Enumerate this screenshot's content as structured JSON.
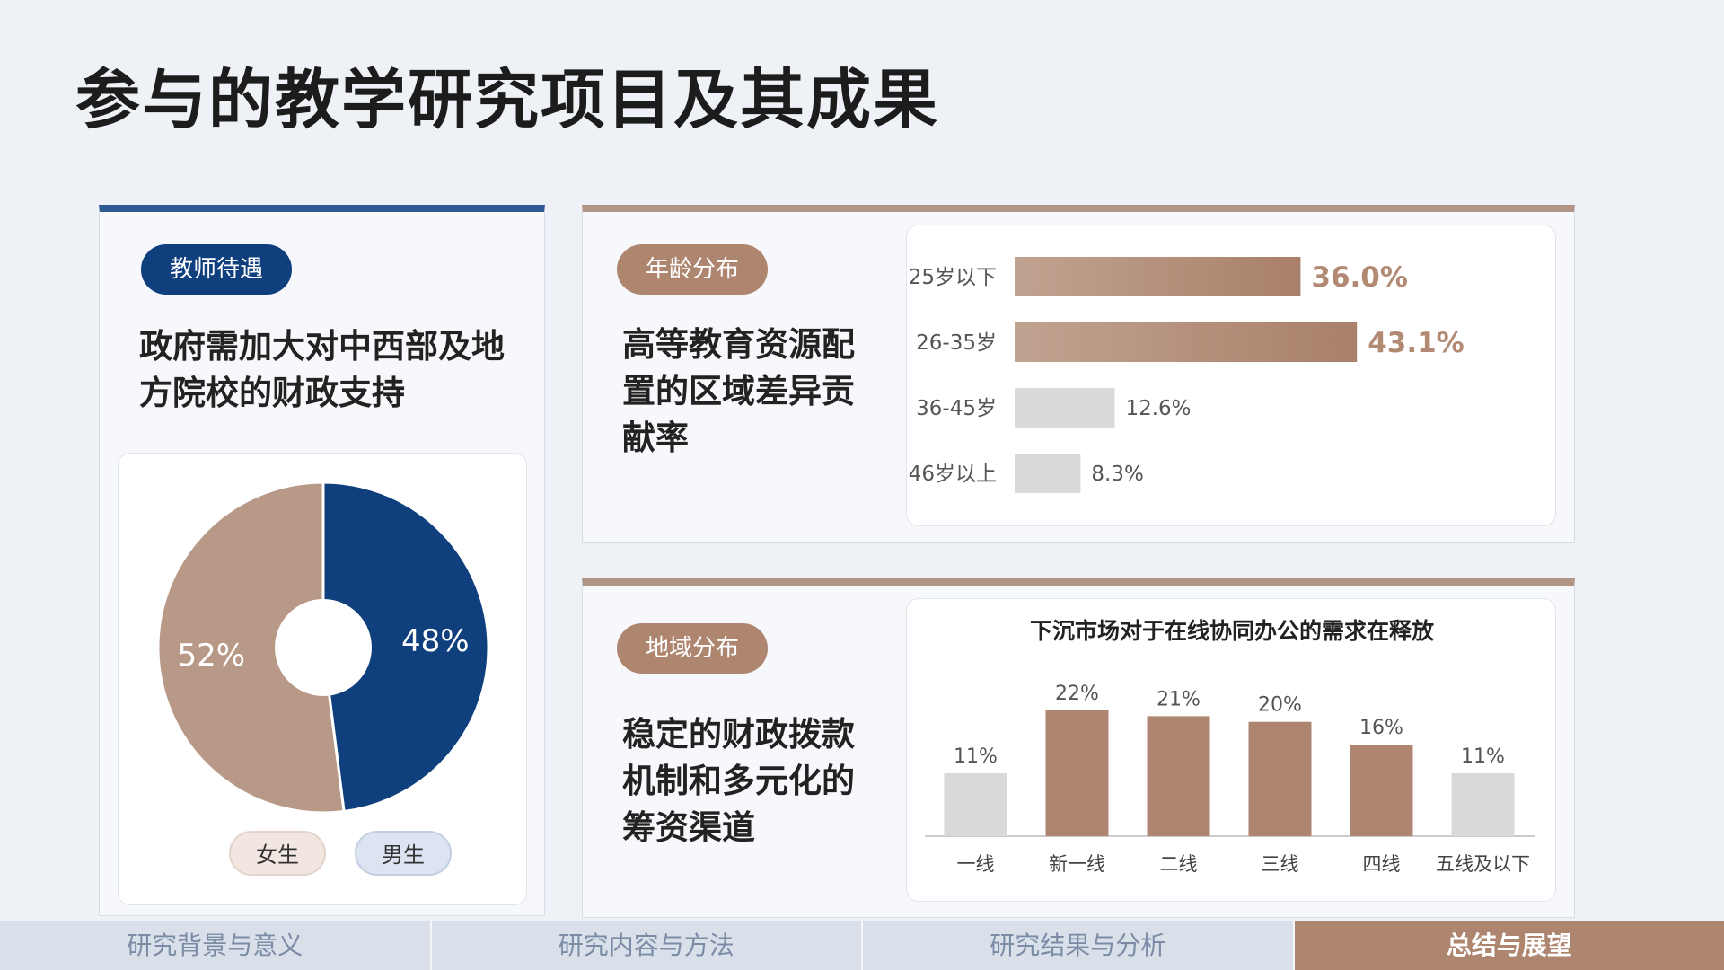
{
  "title": "参与的教学研究项目及其成果",
  "left_card": {
    "tag": "教师待遇",
    "heading_line1": "政府需加大对中西部及地",
    "heading_line2": "方院校的财政支持",
    "legend": {
      "female": "女生",
      "male": "男生"
    }
  },
  "top_card": {
    "tag": "年龄分布",
    "heading_line1": "高等教育资源配",
    "heading_line2": "置的区域差异贡",
    "heading_line3": "献率"
  },
  "bottom_card": {
    "tag": "地域分布",
    "heading_line1": "稳定的财政拨款",
    "heading_line2": "机制和多元化的",
    "heading_line3": "筹资渠道"
  },
  "nav": {
    "tab1": "研究背景与意义",
    "tab2": "研究内容与方法",
    "tab3": "研究结果与分析",
    "tab4": "总结与展望"
  },
  "colors": {
    "brown": "#ae8670",
    "brown_light": "#c1a391",
    "navy": "#0f3f7c",
    "gray": "#d9d9d9",
    "blue_accent": "#2e5b94"
  },
  "chart_data": [
    {
      "type": "pie",
      "categories": [
        "女生",
        "男生"
      ],
      "values": [
        52,
        48
      ],
      "labels": [
        "52%",
        "48%"
      ],
      "colors": [
        "#b89886",
        "#0f3f7c"
      ],
      "donut": true
    },
    {
      "type": "bar",
      "orientation": "horizontal",
      "categories": [
        "25岁以下",
        "26-35岁",
        "36-45岁",
        "46岁以上"
      ],
      "values": [
        36.0,
        43.1,
        12.6,
        8.3
      ],
      "labels": [
        "36.0%",
        "43.1%",
        "12.6%",
        "8.3%"
      ],
      "highlight": [
        true,
        true,
        false,
        false
      ],
      "xlim": [
        0,
        45
      ]
    },
    {
      "type": "bar",
      "title": "下沉市场对于在线协同办公的需求在释放",
      "categories": [
        "一线",
        "新一线",
        "二线",
        "三线",
        "四线",
        "五线及以下"
      ],
      "values": [
        11,
        22,
        21,
        20,
        16,
        11
      ],
      "labels": [
        "11%",
        "22%",
        "21%",
        "20%",
        "16%",
        "11%"
      ],
      "highlight": [
        false,
        true,
        true,
        true,
        true,
        false
      ],
      "ylim": [
        0,
        22
      ]
    }
  ]
}
